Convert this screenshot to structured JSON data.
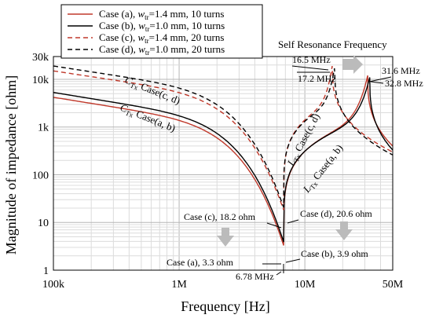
{
  "chart_data": {
    "type": "line",
    "xlabel": "Frequency [Hz]",
    "ylabel": "Magnitude of impedance [ohm]",
    "x_scale": "log",
    "y_scale": "log",
    "xlim": [
      100000,
      50000000
    ],
    "ylim": [
      1,
      30000
    ],
    "x_ticks": [
      {
        "value": 100000,
        "label": "100k"
      },
      {
        "value": 1000000,
        "label": "1M"
      },
      {
        "value": 10000000,
        "label": "10M"
      },
      {
        "value": 50000000,
        "label": "50M"
      }
    ],
    "y_ticks": [
      {
        "value": 1,
        "label": "1"
      },
      {
        "value": 10,
        "label": "10"
      },
      {
        "value": 100,
        "label": "100"
      },
      {
        "value": 1000,
        "label": "1k"
      },
      {
        "value": 10000,
        "label": "10k"
      },
      {
        "value": 30000,
        "label": "30k"
      }
    ],
    "grid": true,
    "legend_position": "top",
    "legend": [
      {
        "name": "Case (a), w_tr=1.4 mm, 10 turns",
        "prefix": "Case (a), ",
        "var": "w",
        "sub": "tr",
        "suffix": "=1.4 mm, 10 turns",
        "color": "#c0392b",
        "dash": "solid"
      },
      {
        "name": "Case (b), w_tr=1.0 mm, 10 turns",
        "prefix": "Case (b), ",
        "var": "w",
        "sub": "tr",
        "suffix": "=1.0 mm, 10 turns",
        "color": "#000000",
        "dash": "solid"
      },
      {
        "name": "Case (c), w_tr=1.4 mm, 20 turns",
        "prefix": "Case (c), ",
        "var": "w",
        "sub": "tr",
        "suffix": "=1.4 mm, 20 turns",
        "color": "#c0392b",
        "dash": "dashed"
      },
      {
        "name": "Case (d), w_tr=1.0 mm, 20 turns",
        "prefix": "Case (d), ",
        "var": "w",
        "sub": "tr",
        "suffix": "=1.0 mm, 20 turns",
        "color": "#000000",
        "dash": "dashed"
      }
    ],
    "series": [
      {
        "name": "Case (a), w_tr=1.4 mm, 10 turns",
        "color": "#c0392b",
        "dash": "solid",
        "capacitance_side": {
          "x": 100000,
          "y": 4200
        },
        "min": {
          "x": 6780000,
          "y": 3.3
        },
        "srf": {
          "x": 31600000,
          "y": 12000
        },
        "end": {
          "x": 50000000,
          "y": 400
        }
      },
      {
        "name": "Case (b), w_tr=1.0 mm, 10 turns",
        "color": "#000000",
        "dash": "solid",
        "capacitance_side": {
          "x": 100000,
          "y": 5300
        },
        "min": {
          "x": 6780000,
          "y": 3.9
        },
        "srf": {
          "x": 32800000,
          "y": 11000
        },
        "end": {
          "x": 50000000,
          "y": 330
        }
      },
      {
        "name": "Case (c), w_tr=1.4 mm, 20 turns",
        "color": "#c0392b",
        "dash": "dashed",
        "capacitance_side": {
          "x": 100000,
          "y": 15000
        },
        "min": {
          "x": 6780000,
          "y": 18.2
        },
        "srf": {
          "x": 16500000,
          "y": 19000
        },
        "end": {
          "x": 50000000,
          "y": 300
        }
      },
      {
        "name": "Case (d), w_tr=1.0 mm, 20 turns",
        "color": "#000000",
        "dash": "dashed",
        "capacitance_side": {
          "x": 100000,
          "y": 19000
        },
        "min": {
          "x": 6780000,
          "y": 20.6
        },
        "srf": {
          "x": 17200000,
          "y": 17000
        },
        "end": {
          "x": 50000000,
          "y": 260
        }
      }
    ],
    "annotations": {
      "self_resonance_title": "Self Resonance Frequency",
      "srf_c": "16.5 MHz",
      "srf_d": "17.2 MHz",
      "srf_a": "31.6 MHz",
      "srf_b": "32.8 MHz",
      "min_a": "Case (a), 3.3 ohm",
      "min_b": "Case (b), 3.9 ohm",
      "min_c": "Case (c), 18.2 ohm",
      "min_d": "Case (d), 20.6 ohm",
      "operating_freq": "6.78 MHz",
      "label_cd_c": {
        "var": "C",
        "sub": "Tx",
        "text": " Case(c, d)"
      },
      "label_ab_c": {
        "var": "C",
        "sub": "Tx",
        "text": " Case(a, b)"
      },
      "label_cd_l": {
        "var": "L",
        "sub": "Tx",
        "text": " Case(c, d)"
      },
      "label_ab_l": {
        "var": "L",
        "sub": "Tx",
        "text": " Case(a, b)"
      }
    }
  }
}
